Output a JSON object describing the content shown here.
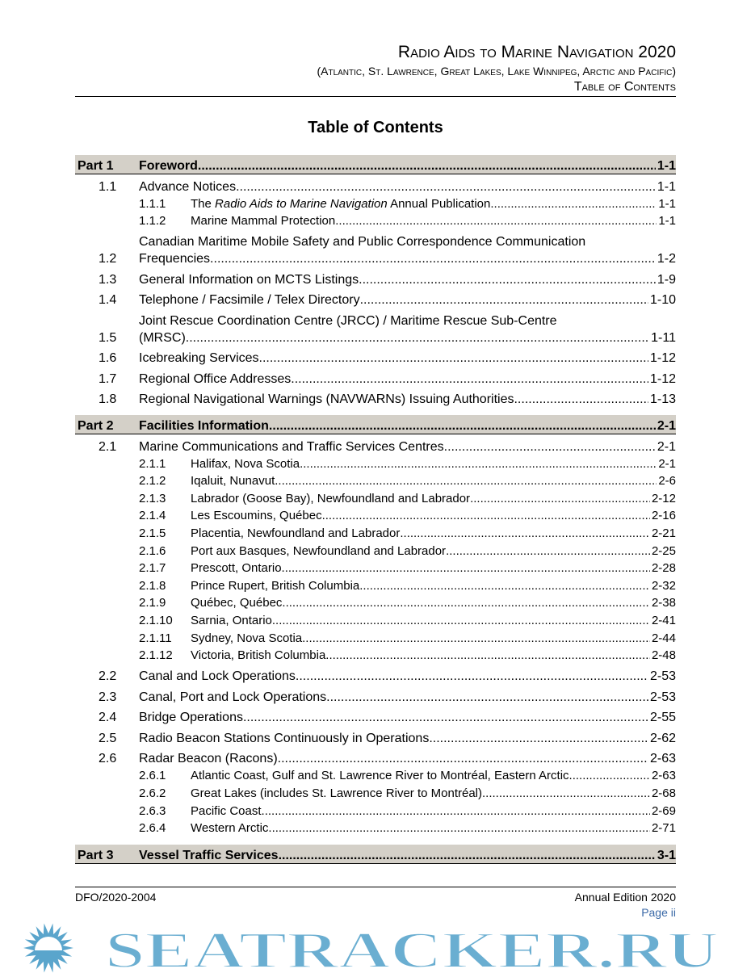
{
  "header": {
    "title": "Radio Aids to Marine Navigation 2020",
    "subtitle": "(Atlantic, St. Lawrence, Great Lakes, Lake Winnipeg, Arctic and Pacific)",
    "section": "Table of Contents"
  },
  "page_title": "Table of Contents",
  "parts": [
    {
      "num": "Part 1",
      "title": "Foreword",
      "page": "1-1",
      "entries": [
        {
          "num": "1.1",
          "title": "Advance Notices",
          "page": "1-1",
          "subs": [
            {
              "num": "1.1.1",
              "pre": "The ",
              "ital": "Radio Aids to Marine Navigation",
              "post": " Annual Publication",
              "page": "1-1"
            },
            {
              "num": "1.1.2",
              "title": "Marine Mammal Protection",
              "page": "1-1"
            }
          ]
        },
        {
          "num": "1.2",
          "title": "Canadian Maritime Mobile Safety and Public Correspondence Communication",
          "title2": "Frequencies",
          "page": "1-2"
        },
        {
          "num": "1.3",
          "title": "General Information on MCTS Listings",
          "page": "1-9"
        },
        {
          "num": "1.4",
          "title": "Telephone / Facsimile / Telex Directory",
          "page": "1-10"
        },
        {
          "num": "1.5",
          "title": "Joint Rescue Coordination Centre (JRCC) / Maritime Rescue Sub-Centre",
          "title2": "(MRSC)",
          "page": "1-11"
        },
        {
          "num": "1.6",
          "title": "Icebreaking Services",
          "page": "1-12"
        },
        {
          "num": "1.7",
          "title": "Regional Office Addresses",
          "page": "1-12"
        },
        {
          "num": "1.8",
          "title": "Regional Navigational Warnings (NAVWARNs) Issuing Authorities",
          "page": "1-13"
        }
      ]
    },
    {
      "num": "Part 2",
      "title": "Facilities Information",
      "page": "2-1",
      "entries": [
        {
          "num": "2.1",
          "title": "Marine Communications and Traffic Services Centres",
          "page": "2-1",
          "subs": [
            {
              "num": "2.1.1",
              "title": "Halifax, Nova Scotia",
              "page": "2-1"
            },
            {
              "num": "2.1.2",
              "title": "Iqaluit, Nunavut",
              "page": "2-6"
            },
            {
              "num": "2.1.3",
              "title": "Labrador (Goose Bay), Newfoundland and Labrador",
              "page": "2-12"
            },
            {
              "num": "2.1.4",
              "title": "Les Escoumins, Québec",
              "page": "2-16"
            },
            {
              "num": "2.1.5",
              "title": "Placentia, Newfoundland and Labrador",
              "page": "2-21"
            },
            {
              "num": "2.1.6",
              "title": "Port aux Basques, Newfoundland and Labrador",
              "page": "2-25"
            },
            {
              "num": "2.1.7",
              "title": "Prescott, Ontario",
              "page": "2-28"
            },
            {
              "num": "2.1.8",
              "title": "Prince Rupert, British Columbia",
              "page": "2-32"
            },
            {
              "num": "2.1.9",
              "title": "Québec, Québec",
              "page": "2-38"
            },
            {
              "num": "2.1.10",
              "title": "Sarnia, Ontario",
              "page": "2-41"
            },
            {
              "num": "2.1.11",
              "title": "Sydney, Nova Scotia",
              "page": "2-44"
            },
            {
              "num": "2.1.12",
              "title": "Victoria, British Columbia",
              "page": "2-48"
            }
          ]
        },
        {
          "num": "2.2",
          "title": "Canal and Lock Operations",
          "page": "2-53"
        },
        {
          "num": "2.3",
          "title": "Canal, Port and Lock Operations",
          "page": "2-53"
        },
        {
          "num": "2.4",
          "title": "Bridge Operations",
          "page": "2-55"
        },
        {
          "num": "2.5",
          "title": "Radio Beacon Stations Continuously in Operations",
          "page": "2-62"
        },
        {
          "num": "2.6",
          "title": "Radar Beacon (Racons)",
          "page": "2-63",
          "subs": [
            {
              "num": "2.6.1",
              "title": "Atlantic Coast, Gulf and St. Lawrence River to Montréal, Eastern Arctic",
              "page": "2-63"
            },
            {
              "num": "2.6.2",
              "title": "Great Lakes (includes St. Lawrence River to Montréal)",
              "page": "2-68"
            },
            {
              "num": "2.6.3",
              "title": "Pacific Coast",
              "page": "2-69"
            },
            {
              "num": "2.6.4",
              "title": "Western Arctic",
              "page": "2-71"
            }
          ]
        }
      ]
    },
    {
      "num": "Part 3",
      "title": "Vessel Traffic Services",
      "page": "3-1",
      "entries": []
    }
  ],
  "footer": {
    "doc_id": "DFO/2020-2004",
    "edition": "Annual Edition 2020",
    "page": "Page ii"
  },
  "watermark": {
    "text": "SEATRACKER.RU",
    "color": "#5aa5cc"
  },
  "colors": {
    "part_bg": "#d4d0c8",
    "page_link": "#3b6aa8"
  }
}
